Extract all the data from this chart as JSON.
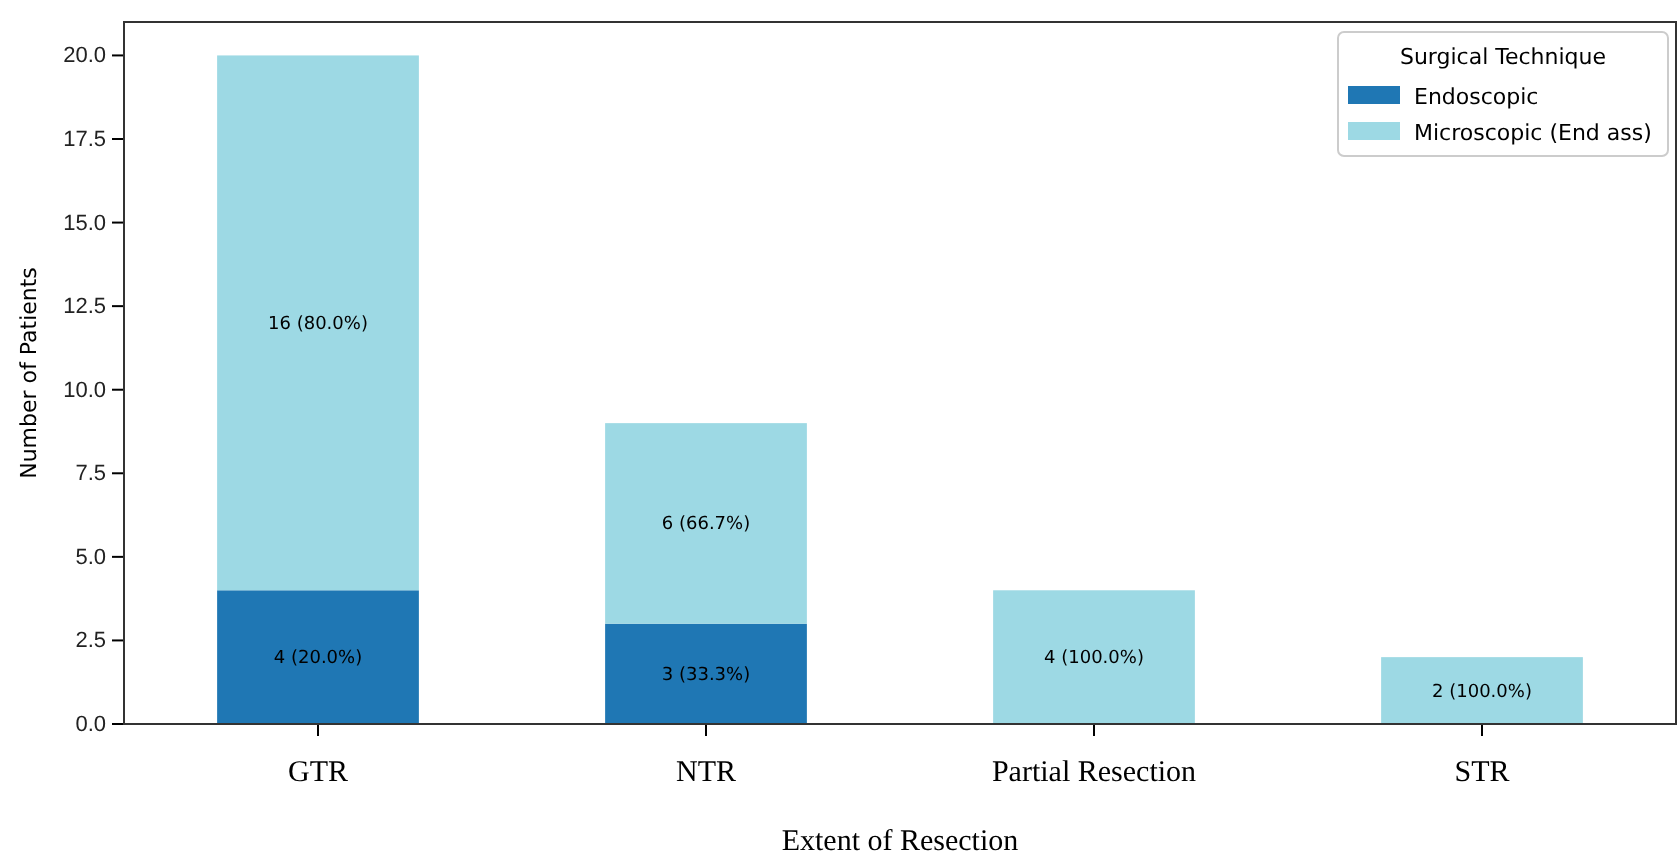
{
  "chart_data": {
    "type": "bar",
    "stacked": true,
    "xlabel": "Extent of Resection",
    "ylabel": "Number of Patients",
    "legend_title": "Surgical Technique",
    "legend": "top right",
    "categories": [
      "GTR",
      "NTR",
      "Partial Resection",
      "STR"
    ],
    "series": [
      {
        "name": "Endoscopic",
        "color": "#1f77b4",
        "values": [
          4,
          3,
          0,
          0
        ],
        "value_labels": [
          "4 (20.0%)",
          "3 (33.3%)",
          null,
          null
        ]
      },
      {
        "name": "Microscopic (End ass)",
        "color": "#9dd9e4",
        "values": [
          16,
          6,
          4,
          2
        ],
        "value_labels": [
          "16 (80.0%)",
          "6 (66.7%)",
          "4 (100.0%)",
          "2 (100.0%)"
        ]
      }
    ],
    "ylim": [
      0,
      21
    ],
    "yticks": [
      {
        "value": 0,
        "label": "0.0"
      },
      {
        "value": 2.5,
        "label": "2.5"
      },
      {
        "value": 5,
        "label": "5.0"
      },
      {
        "value": 7.5,
        "label": "7.5"
      },
      {
        "value": 10,
        "label": "10.0"
      },
      {
        "value": 12.5,
        "label": "12.5"
      },
      {
        "value": 15,
        "label": "15.0"
      },
      {
        "value": 17.5,
        "label": "17.5"
      },
      {
        "value": 20,
        "label": "20.0"
      }
    ]
  }
}
